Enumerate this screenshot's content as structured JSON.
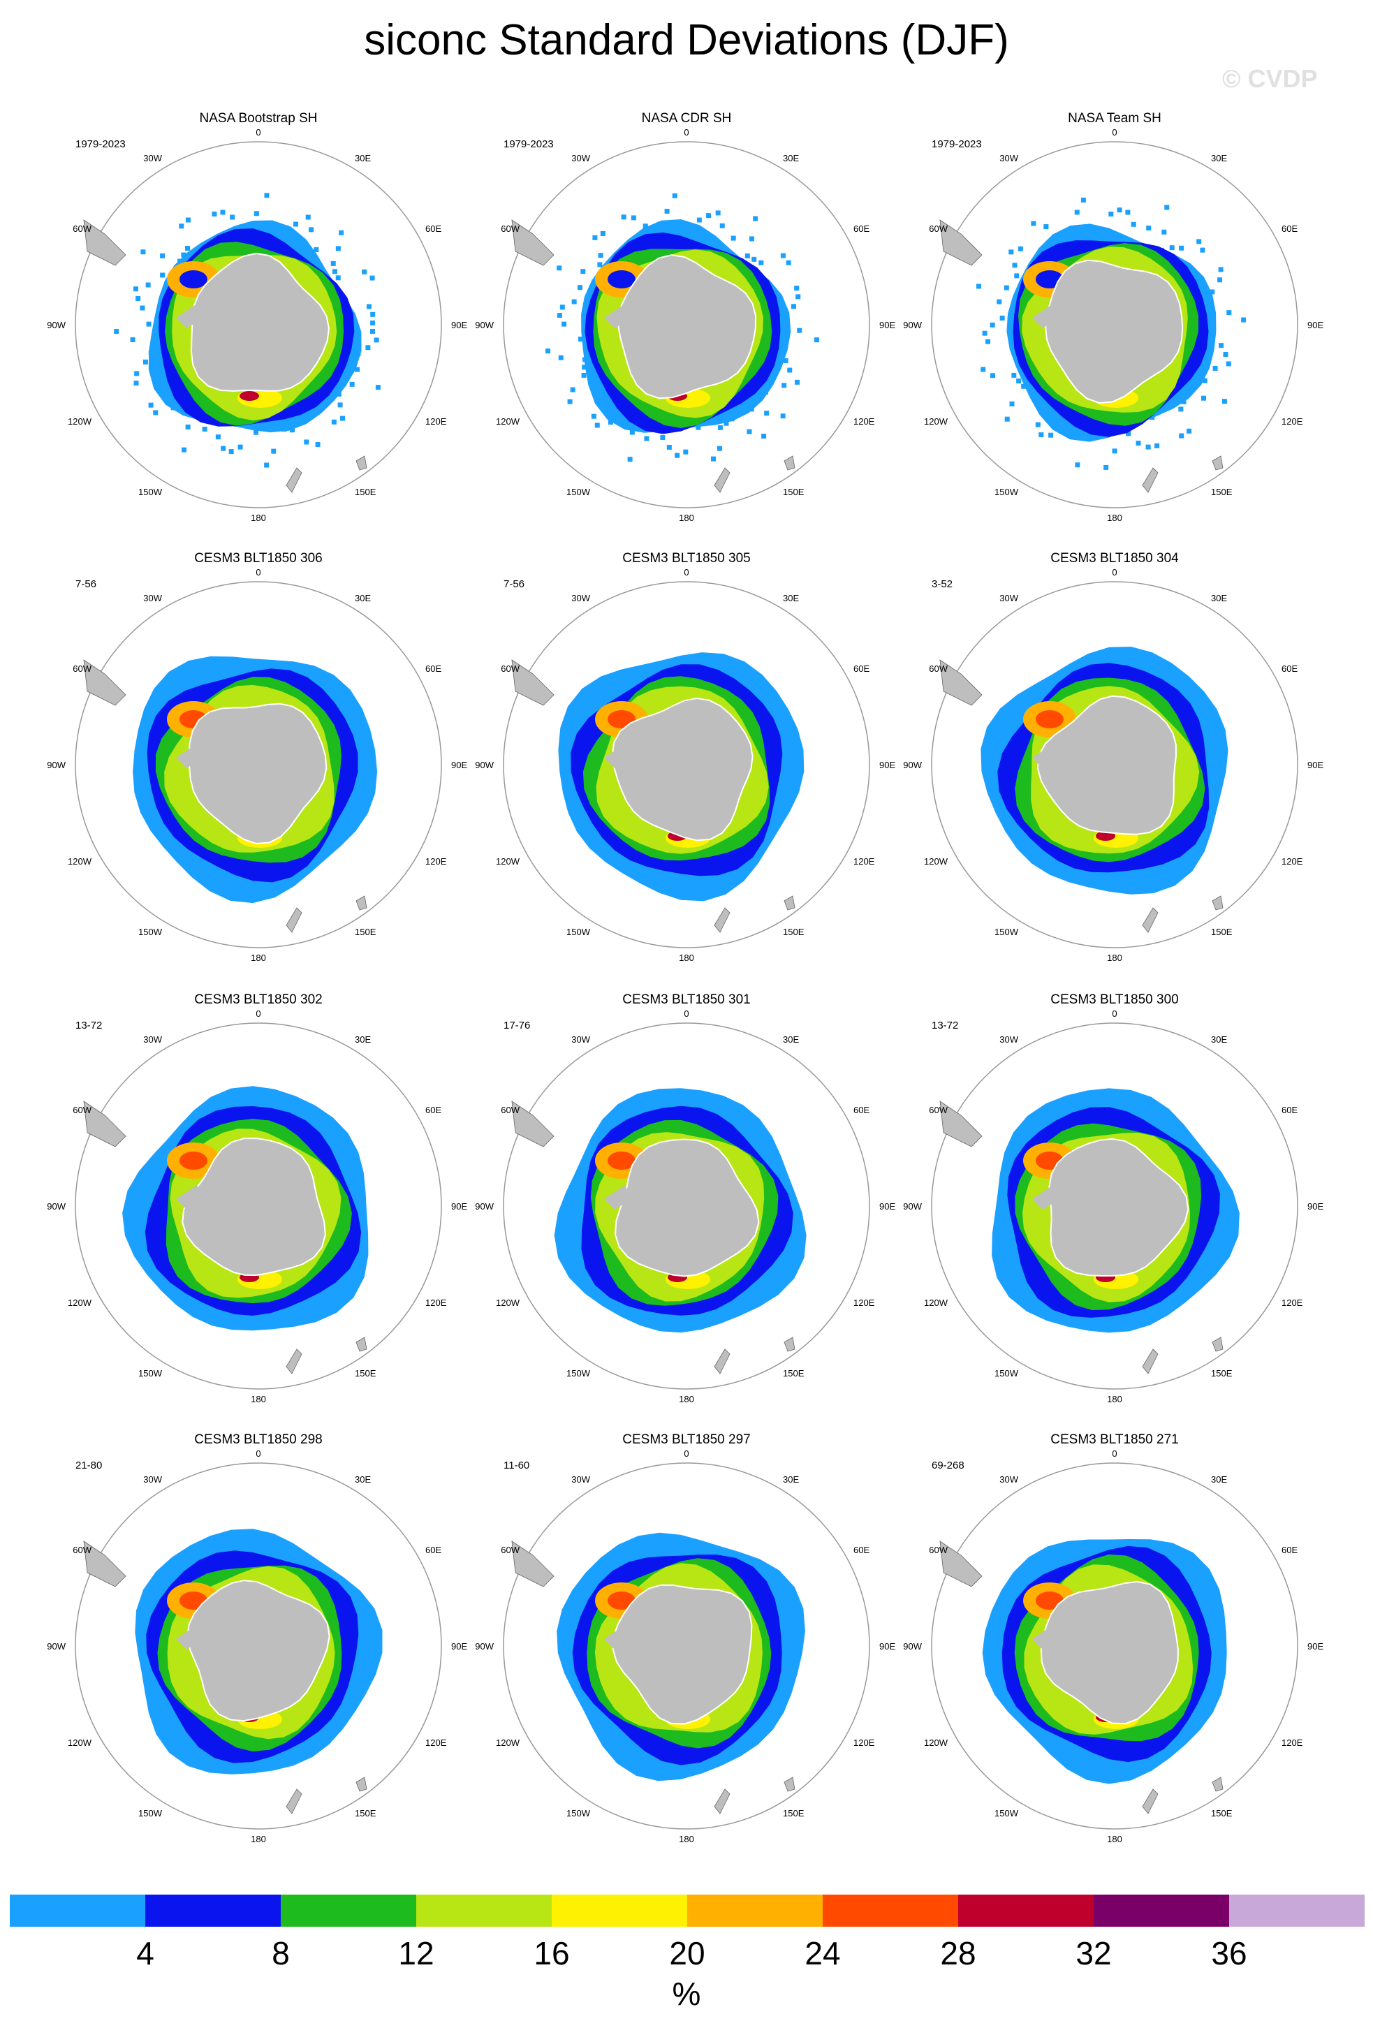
{
  "title": "siconc Standard Deviations (DJF)",
  "watermark": "© CVDP",
  "lon_labels": [
    "0",
    "30E",
    "60E",
    "90E",
    "120E",
    "150E",
    "180",
    "150W",
    "120W",
    "90W",
    "60W",
    "30W"
  ],
  "colors": {
    "land": "#bebebe",
    "circle": "#999999",
    "levels": [
      "#1aa0ff",
      "#0a14ee",
      "#1ebb1e",
      "#b8e614",
      "#fff200",
      "#ffb000",
      "#ff4a00",
      "#c0002c",
      "#7a0068",
      "#c8a8d8"
    ]
  },
  "panels": [
    {
      "title": "NASA Bootstrap SH",
      "years": "1979-2023"
    },
    {
      "title": "NASA CDR SH",
      "years": "1979-2023"
    },
    {
      "title": "NASA Team SH",
      "years": "1979-2023"
    },
    {
      "title": "CESM3 BLT1850 306",
      "years": "7-56"
    },
    {
      "title": "CESM3 BLT1850 305",
      "years": "7-56"
    },
    {
      "title": "CESM3 BLT1850 304",
      "years": "3-52"
    },
    {
      "title": "CESM3 BLT1850 302",
      "years": "13-72"
    },
    {
      "title": "CESM3 BLT1850 301",
      "years": "17-76"
    },
    {
      "title": "CESM3 BLT1850 300",
      "years": "13-72"
    },
    {
      "title": "CESM3 BLT1850 298",
      "years": "21-80"
    },
    {
      "title": "CESM3 BLT1850 297",
      "years": "11-60"
    },
    {
      "title": "CESM3 BLT1850 271",
      "years": "69-268"
    }
  ],
  "colorbar": {
    "ticks": [
      "4",
      "8",
      "12",
      "16",
      "20",
      "24",
      "28",
      "32",
      "36"
    ],
    "unit": "%"
  }
}
